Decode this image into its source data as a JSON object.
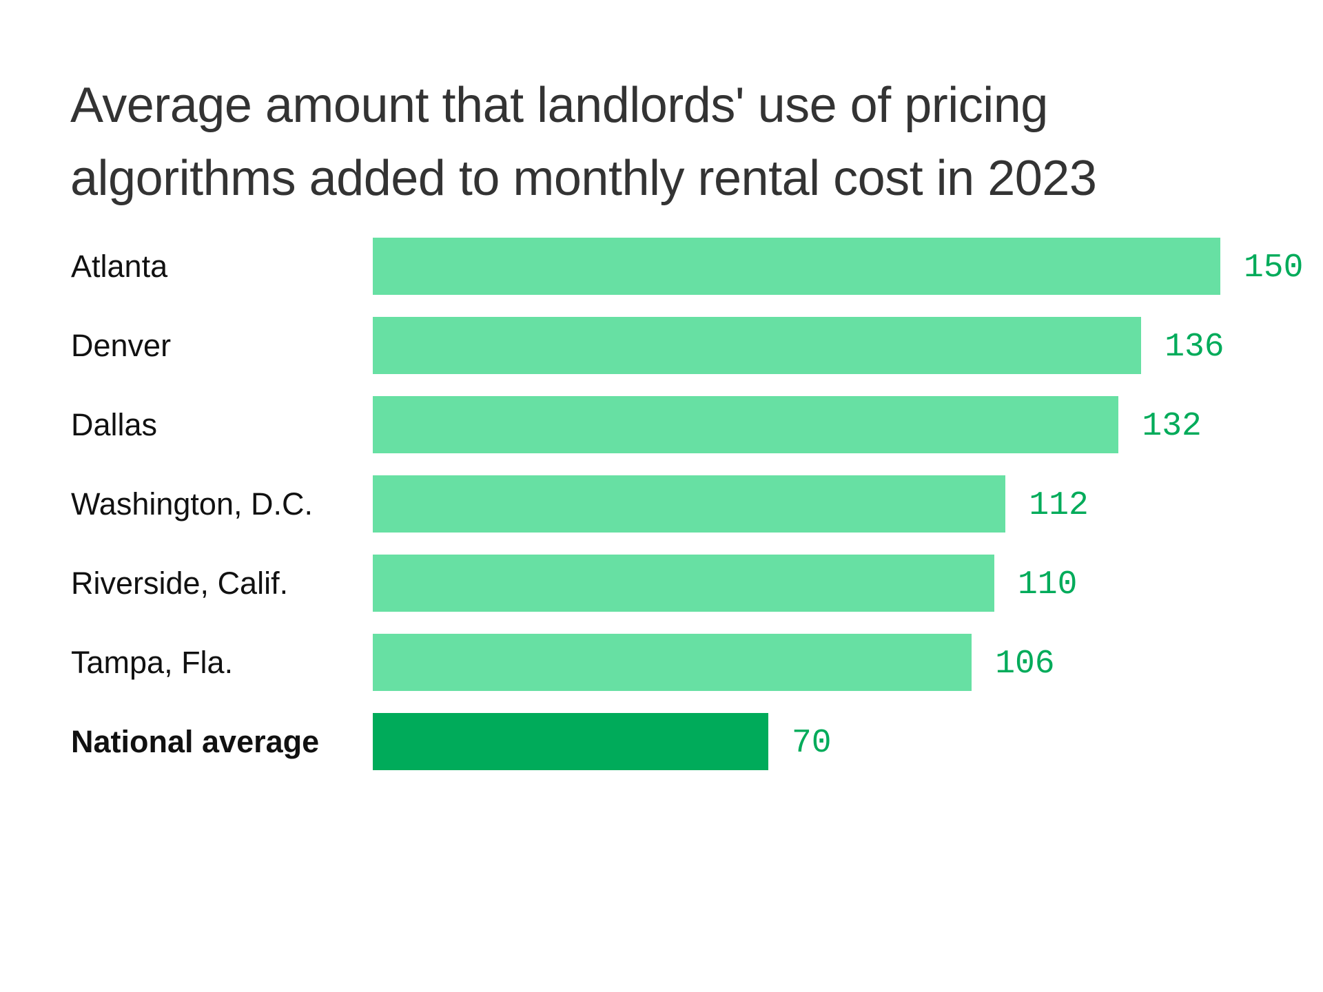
{
  "chart_data": {
    "type": "bar",
    "orientation": "horizontal",
    "title": "Average amount that landlords' use of pricing algorithms added to monthly rental cost in 2023",
    "categories": [
      "Atlanta",
      "Denver",
      "Dallas",
      "Washington, D.C.",
      "Riverside, Calif.",
      "Tampa, Fla.",
      "National average"
    ],
    "values": [
      150,
      136,
      132,
      112,
      110,
      106,
      70
    ],
    "value_labels": [
      "150",
      "136",
      "132",
      "112",
      "110",
      "106",
      "70"
    ],
    "highlight": "National average",
    "xlim": [
      0,
      150
    ],
    "grid": false,
    "colors": {
      "bar": "#67e0a3",
      "highlight_bar": "#00ab5a",
      "value_label": "#00ab5a",
      "title": "#333333"
    }
  }
}
